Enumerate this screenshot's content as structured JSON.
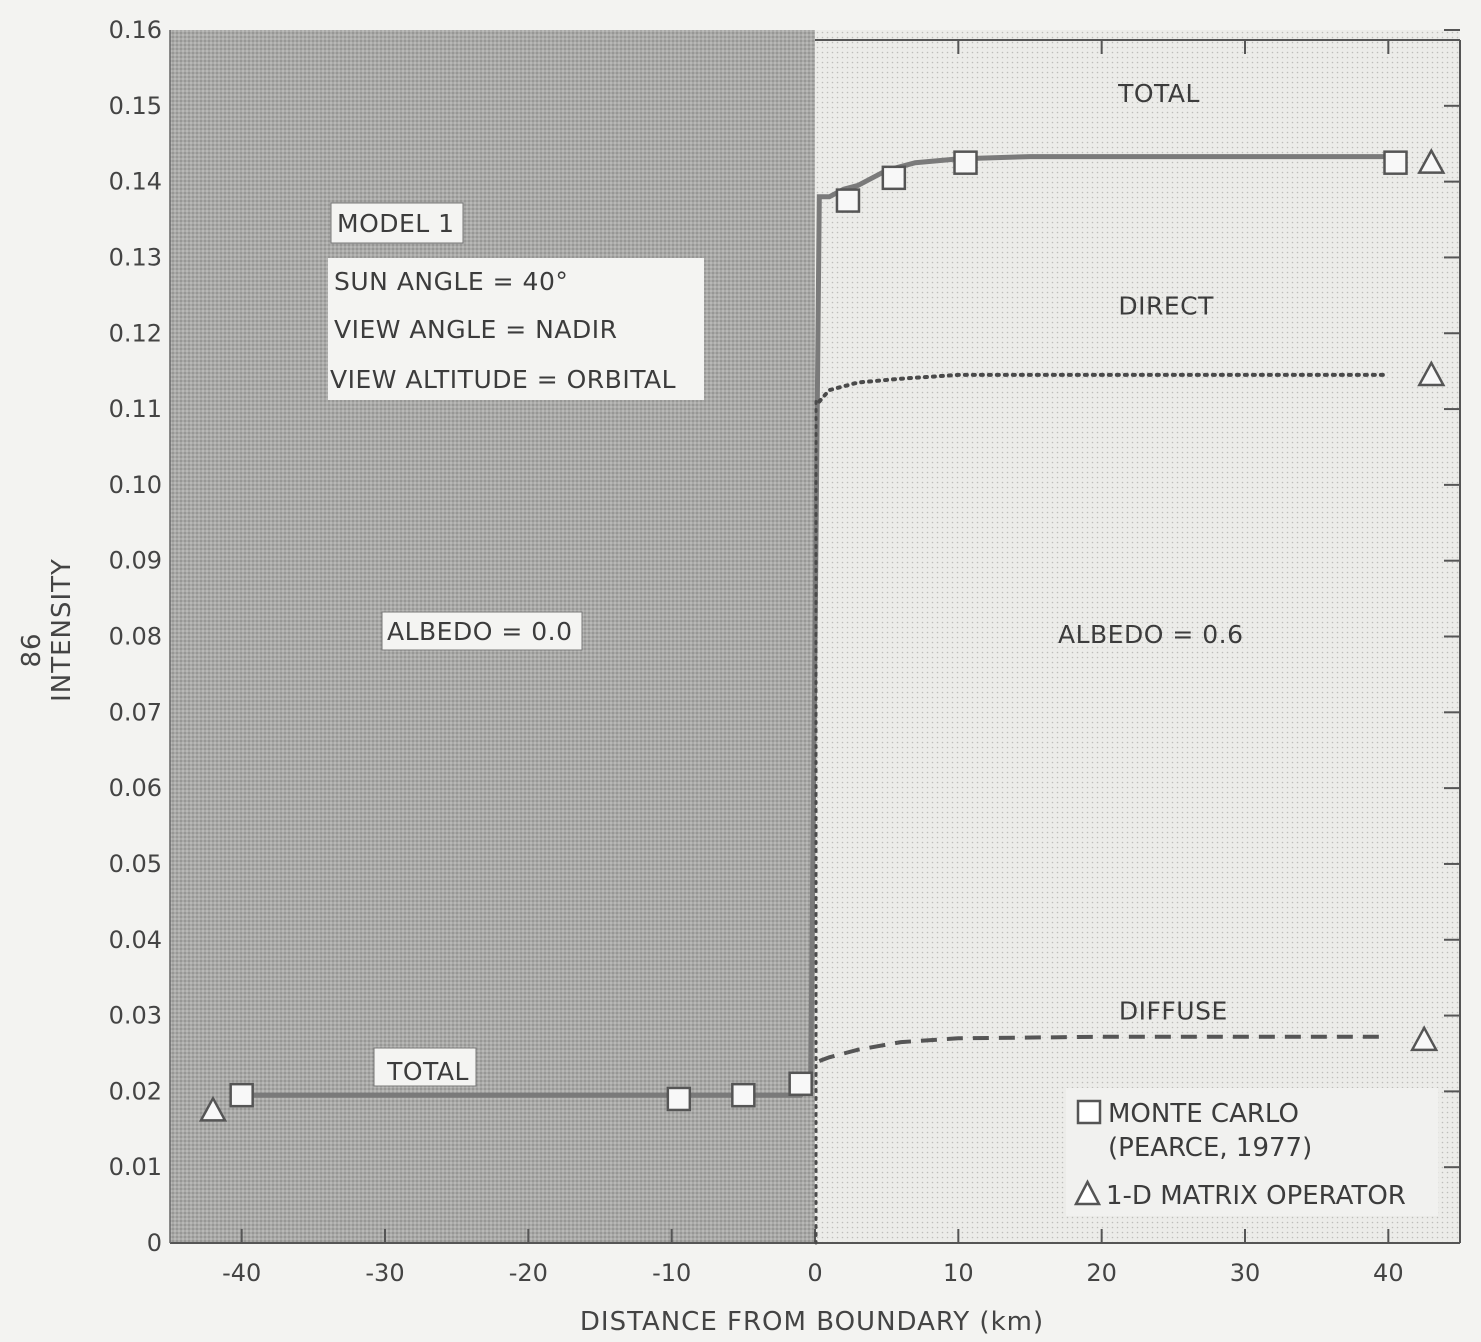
{
  "chart_data": {
    "type": "line",
    "xlabel": "DISTANCE FROM BOUNDARY (km)",
    "ylabel": "INTENSITY",
    "xlim": [
      -45,
      45
    ],
    "ylim": [
      0,
      0.16
    ],
    "x_ticks": [
      -40,
      -30,
      -20,
      -10,
      0,
      10,
      20,
      30,
      40
    ],
    "y_ticks": [
      "0",
      "0.01",
      "0.02",
      "0.03",
      "0.04",
      "0.05",
      "0.06",
      "0.07",
      "0.08",
      "0.09",
      "0.10",
      "0.11",
      "0.12",
      "0.13",
      "0.14",
      "0.15",
      "0.16"
    ],
    "page_number": "86",
    "regions": [
      {
        "label": "ALBEDO = 0.0",
        "x_range": [
          -45,
          0
        ],
        "shade": "dark"
      },
      {
        "label": "ALBEDO = 0.6",
        "x_range": [
          0,
          45
        ],
        "shade": "light"
      }
    ],
    "model_box": [
      "MODEL 1",
      "SUN ANGLE = 40°",
      "VIEW ANGLE = NADIR",
      "VIEW ALTITUDE = ORBITAL"
    ],
    "series": [
      {
        "name": "TOTAL",
        "style": "solid",
        "x": [
          -40,
          -10,
          -1,
          -0.3,
          0.3,
          1,
          2,
          3,
          5,
          7,
          10,
          15,
          20,
          30,
          40
        ],
        "y": [
          0.0195,
          0.0195,
          0.0195,
          0.021,
          0.138,
          0.138,
          0.139,
          0.1395,
          0.1415,
          0.1425,
          0.143,
          0.1433,
          0.1433,
          0.1433,
          0.1433
        ]
      },
      {
        "name": "DIRECT",
        "style": "dotted",
        "x": [
          0.3,
          1,
          3,
          6,
          10,
          20,
          30,
          40
        ],
        "y": [
          0.111,
          0.1125,
          0.1135,
          0.114,
          0.1145,
          0.1145,
          0.1145,
          0.1145
        ]
      },
      {
        "name": "DIFFUSE",
        "style": "dashed",
        "x": [
          0.3,
          1,
          3,
          6,
          10,
          20,
          30,
          40
        ],
        "y": [
          0.024,
          0.0245,
          0.0255,
          0.0265,
          0.027,
          0.0272,
          0.0272,
          0.0272
        ]
      }
    ],
    "markers": {
      "monte_carlo": {
        "x": [
          -40,
          -9.5,
          -5,
          -1,
          2.3,
          5.5,
          10.5,
          40.5
        ],
        "y": [
          0.0195,
          0.019,
          0.0195,
          0.021,
          0.1375,
          0.1405,
          0.1425,
          0.1425
        ]
      },
      "matrix_operator": {
        "x": [
          -42,
          43,
          43,
          42.5
        ],
        "y": [
          0.0175,
          0.1425,
          0.1145,
          0.0268
        ]
      }
    },
    "curve_labels": [
      {
        "text": "TOTAL",
        "x": 24,
        "y": 0.1505
      },
      {
        "text": "DIRECT",
        "x": 24.5,
        "y": 0.1225
      },
      {
        "text": "DIFFUSE",
        "x": 25,
        "y": 0.0295
      },
      {
        "text": "TOTAL",
        "x": -27,
        "y": 0.0215
      }
    ],
    "legend": {
      "entries": [
        {
          "symbol": "square",
          "lines": [
            "MONTE CARLO",
            "(PEARCE, 1977)"
          ]
        },
        {
          "symbol": "triangle",
          "lines": [
            "1-D MATRIX OPERATOR"
          ]
        }
      ]
    }
  }
}
